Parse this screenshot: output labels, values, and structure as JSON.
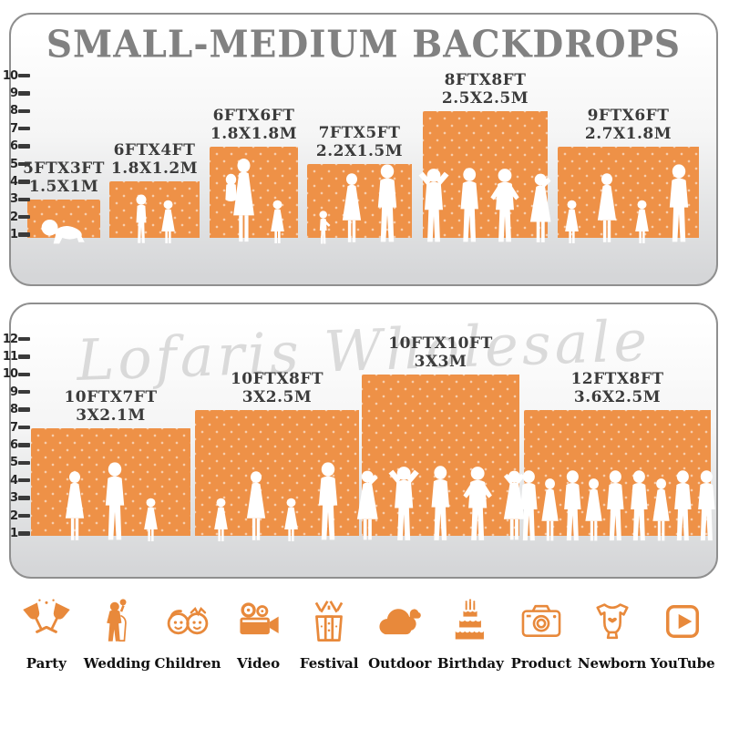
{
  "title": "SMALL-MEDIUM BACKDROPS",
  "colors": {
    "accent_orange": "#ee9147",
    "title_gray": "#818181",
    "label_dark": "#3b3b3b",
    "icon_orange": "#e8893b",
    "silhouette_white": "#ffffff"
  },
  "panel_small_medium": {
    "ruler_labels": [
      "10",
      "9",
      "8",
      "7",
      "6",
      "5",
      "4",
      "3",
      "2",
      "1"
    ],
    "backdrops": [
      {
        "size_ft": "5FTX3FT",
        "size_m": "1.5X1M",
        "figures": [
          "crawling-baby"
        ]
      },
      {
        "size_ft": "6FTX4FT",
        "size_m": "1.8X1.2M",
        "figures": [
          "boy",
          "girl"
        ]
      },
      {
        "size_ft": "6FTX6FT",
        "size_m": "1.8X1.8M",
        "figures": [
          "mother-holding-child",
          "girl"
        ]
      },
      {
        "size_ft": "7FTX5FT",
        "size_m": "2.2X1.5M",
        "figures": [
          "toddler",
          "woman",
          "man"
        ]
      },
      {
        "size_ft": "8FTX8FT",
        "size_m": "2.5X2.5M",
        "figures": [
          "man-arms-up",
          "man",
          "man-hands-on-hips",
          "woman-posing"
        ]
      },
      {
        "size_ft": "9FTX6FT",
        "size_m": "2.7X1.8M",
        "figures": [
          "girl",
          "woman",
          "girl",
          "man"
        ]
      }
    ]
  },
  "panel_large": {
    "watermark": "Lofaris Wholesale",
    "ruler_labels": [
      "12",
      "11",
      "10",
      "9",
      "8",
      "7",
      "6",
      "5",
      "4",
      "3",
      "2",
      "1"
    ],
    "backdrops": [
      {
        "size_ft": "10FTX7FT",
        "size_m": "3X2.1M",
        "figures": [
          "woman",
          "man",
          "girl"
        ]
      },
      {
        "size_ft": "10FTX8FT",
        "size_m": "3X2.5M",
        "figures": [
          "girl",
          "woman",
          "girl",
          "man"
        ]
      },
      {
        "size_ft": "10FTX10FT",
        "size_m": "3X3M",
        "figures": [
          "woman-posing",
          "man-arms-up",
          "man",
          "man-hands-on-hips",
          "woman-arms-up"
        ]
      },
      {
        "size_ft": "12FTX8FT",
        "size_m": "3.6X2.5M",
        "figures": [
          "man",
          "woman",
          "man",
          "woman",
          "man",
          "man",
          "woman",
          "man",
          "man"
        ]
      }
    ]
  },
  "categories": [
    {
      "label": "Party",
      "icon": "party-icon"
    },
    {
      "label": "Wedding",
      "icon": "wedding-icon"
    },
    {
      "label": "Children",
      "icon": "children-icon"
    },
    {
      "label": "Video",
      "icon": "video-icon"
    },
    {
      "label": "Festival",
      "icon": "festival-icon"
    },
    {
      "label": "Outdoor",
      "icon": "outdoor-icon"
    },
    {
      "label": "Birthday",
      "icon": "birthday-icon"
    },
    {
      "label": "Product",
      "icon": "product-icon"
    },
    {
      "label": "Newborn",
      "icon": "newborn-icon"
    },
    {
      "label": "YouTube",
      "icon": "youtube-icon"
    }
  ]
}
